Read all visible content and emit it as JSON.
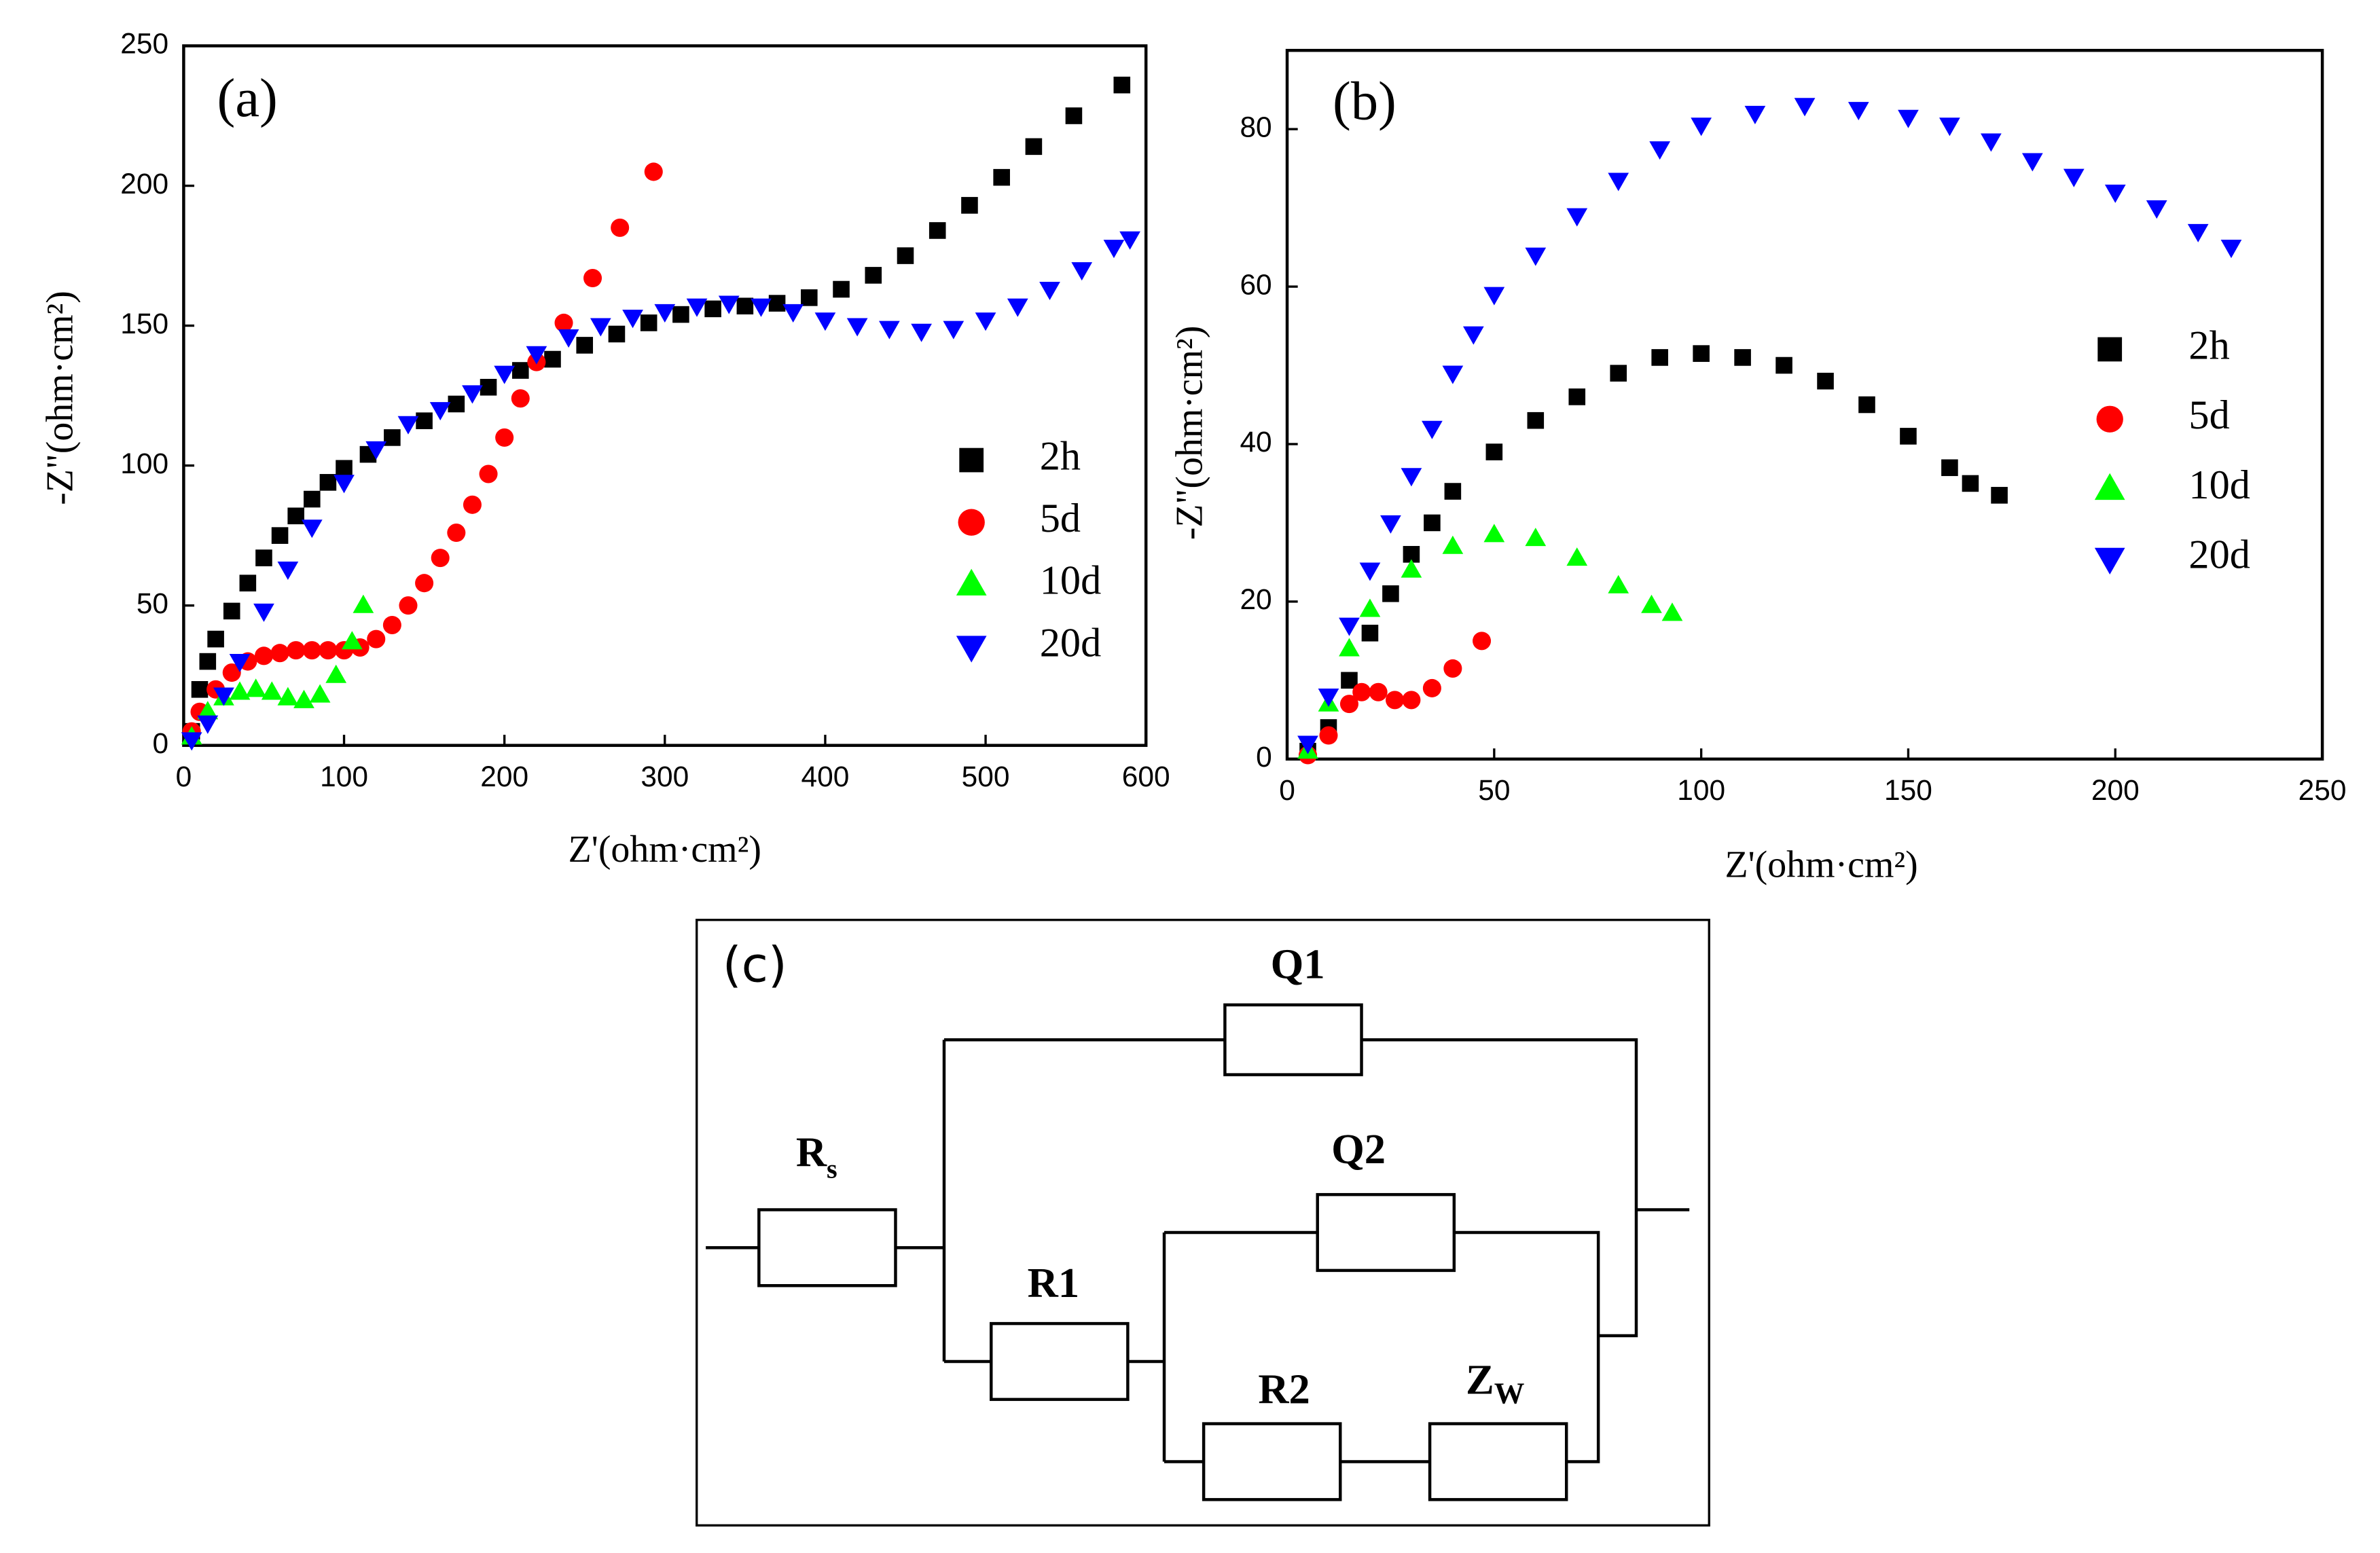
{
  "chart_data": [
    {
      "type": "scatter",
      "panel": "(a)",
      "xlabel": "Z'(ohm·cm²)",
      "ylabel": "-Z\"(ohm·cm²)",
      "xlim": [
        0,
        600
      ],
      "xticks": [
        0,
        100,
        200,
        300,
        400,
        500,
        600
      ],
      "ylim": [
        0,
        250
      ],
      "yticks": [
        0,
        50,
        100,
        150,
        200,
        250
      ],
      "grid": false,
      "series": [
        {
          "name": "2h",
          "color": "#000000",
          "marker": "square",
          "x": [
            5,
            10,
            15,
            20,
            30,
            40,
            50,
            60,
            70,
            80,
            90,
            100,
            115,
            130,
            150,
            170,
            190,
            210,
            230,
            250,
            270,
            290,
            310,
            330,
            350,
            370,
            390,
            410,
            430,
            450,
            470,
            490,
            510,
            530,
            555,
            585
          ],
          "y": [
            5,
            20,
            30,
            38,
            48,
            58,
            67,
            75,
            82,
            88,
            94,
            99,
            104,
            110,
            116,
            122,
            128,
            134,
            138,
            143,
            147,
            151,
            154,
            156,
            157,
            158,
            160,
            163,
            168,
            175,
            184,
            193,
            203,
            214,
            225,
            236
          ]
        },
        {
          "name": "5d",
          "color": "#ff0000",
          "marker": "circle",
          "x": [
            5,
            10,
            20,
            30,
            40,
            50,
            60,
            70,
            80,
            90,
            100,
            110,
            120,
            130,
            140,
            150,
            160,
            170,
            180,
            190,
            200,
            210,
            220,
            237,
            255,
            272,
            293
          ],
          "y": [
            5,
            12,
            20,
            26,
            30,
            32,
            33,
            34,
            34,
            34,
            34,
            35,
            38,
            43,
            50,
            58,
            67,
            76,
            86,
            97,
            110,
            124,
            137,
            151,
            167,
            185,
            205
          ]
        },
        {
          "name": "10d",
          "color": "#00ff00",
          "marker": "triangle-up",
          "x": [
            5,
            15,
            25,
            35,
            45,
            55,
            65,
            75,
            85,
            95,
            105,
            112
          ],
          "y": [
            3,
            12,
            17,
            19,
            20,
            19,
            17,
            16,
            18,
            25,
            37,
            50
          ]
        },
        {
          "name": "20d",
          "color": "#0000ff",
          "marker": "triangle-down",
          "x": [
            5,
            15,
            25,
            35,
            50,
            65,
            80,
            100,
            120,
            140,
            160,
            180,
            200,
            220,
            240,
            260,
            280,
            300,
            320,
            340,
            360,
            380,
            400,
            420,
            440,
            460,
            480,
            500,
            520,
            540,
            560,
            580,
            590
          ],
          "y": [
            2,
            8,
            18,
            30,
            48,
            63,
            78,
            94,
            106,
            115,
            120,
            126,
            133,
            140,
            146,
            150,
            153,
            155,
            157,
            158,
            157,
            155,
            152,
            150,
            149,
            148,
            149,
            152,
            157,
            163,
            170,
            178,
            181
          ]
        }
      ]
    },
    {
      "type": "scatter",
      "panel": "(b)",
      "xlabel": "Z'(ohm·cm²)",
      "ylabel": "-Z\"(ohm·cm²)",
      "xlim": [
        0,
        250
      ],
      "xticks": [
        0,
        50,
        100,
        150,
        200,
        250
      ],
      "ylim": [
        0,
        90
      ],
      "yticks": [
        0,
        20,
        40,
        60,
        80
      ],
      "grid": false,
      "series": [
        {
          "name": "2h",
          "color": "#000000",
          "marker": "square",
          "x": [
            5,
            10,
            15,
            20,
            25,
            30,
            35,
            40,
            50,
            60,
            70,
            80,
            90,
            100,
            110,
            120,
            130,
            140,
            150,
            160,
            165,
            172
          ],
          "y": [
            1,
            4,
            10,
            16,
            21,
            26,
            30,
            34,
            39,
            43,
            46,
            49,
            51,
            51.5,
            51,
            50,
            48,
            45,
            41,
            37,
            35,
            33.5
          ]
        },
        {
          "name": "5d",
          "color": "#ff0000",
          "marker": "circle",
          "x": [
            5,
            10,
            15,
            18,
            22,
            26,
            30,
            35,
            40,
            47
          ],
          "y": [
            0.5,
            3,
            7,
            8.5,
            8.5,
            7.5,
            7.5,
            9,
            11.5,
            15
          ]
        },
        {
          "name": "10d",
          "color": "#00ff00",
          "marker": "triangle-up",
          "x": [
            5,
            10,
            15,
            20,
            30,
            40,
            50,
            60,
            70,
            80,
            88,
            93
          ],
          "y": [
            1,
            7,
            14,
            19,
            24,
            27,
            28.5,
            28,
            25.5,
            22,
            19.5,
            18.5
          ]
        },
        {
          "name": "20d",
          "color": "#0000ff",
          "marker": "triangle-down",
          "x": [
            5,
            10,
            15,
            20,
            25,
            30,
            35,
            40,
            45,
            50,
            60,
            70,
            80,
            90,
            100,
            113,
            125,
            138,
            150,
            160,
            170,
            180,
            190,
            200,
            210,
            220,
            228
          ],
          "y": [
            2,
            8,
            17,
            24,
            30,
            36,
            42,
            49,
            54,
            59,
            64,
            69,
            73.5,
            77.5,
            80.5,
            82,
            83,
            82.5,
            81.5,
            80.5,
            78.5,
            76,
            74,
            72,
            70,
            67,
            65
          ]
        }
      ]
    }
  ],
  "diagram": {
    "label": "(c)",
    "elements": [
      {
        "label": "Q1"
      },
      {
        "label": "R",
        "subscript": "s"
      },
      {
        "label": "Q2"
      },
      {
        "label": "R1"
      },
      {
        "label": "R2"
      },
      {
        "label": "Z",
        "subscript": "W"
      }
    ]
  }
}
